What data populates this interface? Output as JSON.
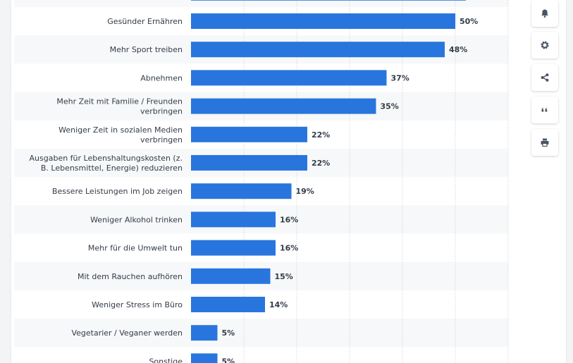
{
  "chart_data": {
    "type": "bar",
    "orientation": "horizontal",
    "categories": [
      [
        "Gesünder Ernähren"
      ],
      [
        "Mehr Sport treiben"
      ],
      [
        "Abnehmen"
      ],
      [
        "Mehr Zeit mit Familie / Freunden",
        "verbringen"
      ],
      [
        "Weniger Zeit in sozialen Medien",
        "verbringen"
      ],
      [
        "Ausgaben für Lebenshaltungskosten (z.",
        "B. Lebensmittel, Energie) reduzieren"
      ],
      [
        "Bessere Leistungen im Job zeigen"
      ],
      [
        "Weniger Alkohol trinken"
      ],
      [
        "Mehr für die Umwelt tun"
      ],
      [
        "Mit dem Rauchen aufhören"
      ],
      [
        "Weniger Stress im Büro"
      ],
      [
        "Vegetarier / Veganer werden"
      ],
      [
        "Sonstige"
      ]
    ],
    "values": [
      50,
      48,
      37,
      35,
      22,
      22,
      19,
      16,
      16,
      15,
      14,
      5,
      5
    ],
    "value_labels": [
      "50%",
      "48%",
      "37%",
      "35%",
      "22%",
      "22%",
      "19%",
      "16%",
      "16%",
      "15%",
      "14%",
      "5%",
      "5%"
    ],
    "partial_bar_above_value": 52,
    "xlim": [
      0,
      60
    ],
    "grid": true,
    "colors": {
      "bar": "#2876dd",
      "stripe": "#f7f8f9",
      "grid": "#c5cad0"
    }
  },
  "sidebar": [
    {
      "name": "notification-button",
      "icon": "bell-icon"
    },
    {
      "name": "settings-button",
      "icon": "gear-icon"
    },
    {
      "name": "share-button",
      "icon": "share-icon"
    },
    {
      "name": "cite-button",
      "icon": "quote-icon"
    },
    {
      "name": "print-button",
      "icon": "print-icon"
    }
  ]
}
